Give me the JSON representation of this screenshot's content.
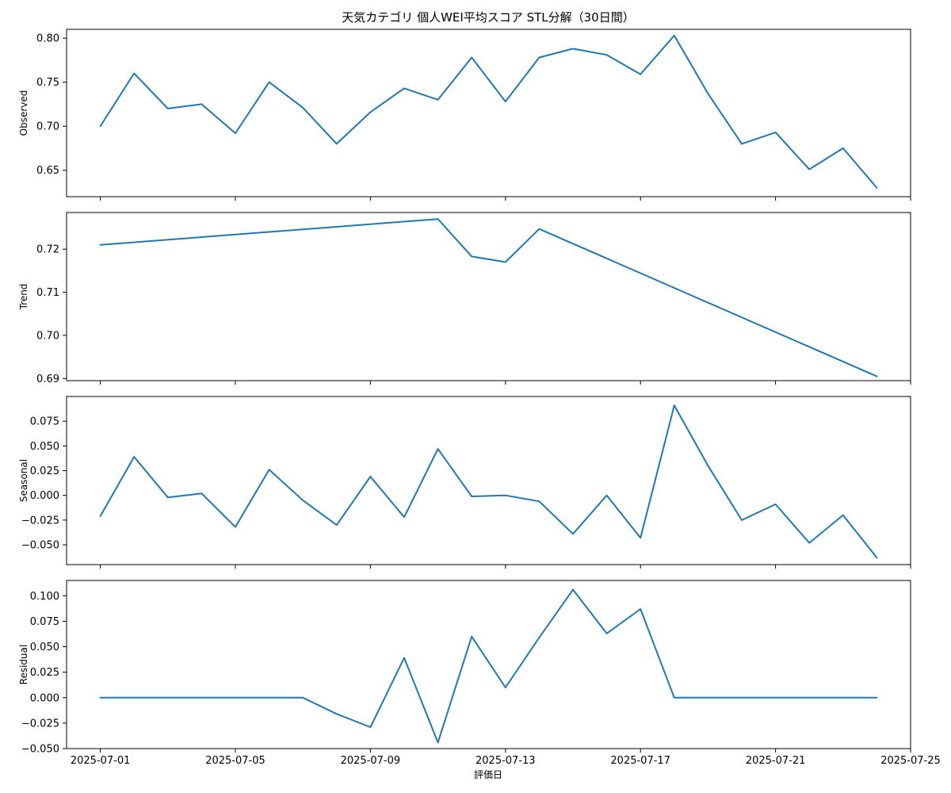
{
  "figure": {
    "title": "天気カテゴリ 個人WEI平均スコア STL分解（30日間）",
    "xlabel": "評価日",
    "line_color": "#1f77b4"
  },
  "chart_data": [
    {
      "type": "line",
      "ylabel": "Observed",
      "grid": false,
      "legend": "none",
      "xlim": [
        "2025-06-30",
        "2025-07-25"
      ],
      "ylim": [
        0.62,
        0.81
      ],
      "yticks": [
        0.65,
        0.7,
        0.75,
        0.8
      ],
      "ytick_labels": [
        "0.65",
        "0.70",
        "0.75",
        "0.80"
      ],
      "series": [
        {
          "x": [
            "2025-07-01",
            "2025-07-02",
            "2025-07-03",
            "2025-07-04",
            "2025-07-05",
            "2025-07-06",
            "2025-07-07",
            "2025-07-08",
            "2025-07-09",
            "2025-07-10",
            "2025-07-11",
            "2025-07-12",
            "2025-07-13",
            "2025-07-14",
            "2025-07-15",
            "2025-07-16",
            "2025-07-17",
            "2025-07-18",
            "2025-07-19",
            "2025-07-20",
            "2025-07-21",
            "2025-07-22",
            "2025-07-23",
            "2025-07-24"
          ],
          "values": [
            0.7,
            0.76,
            0.72,
            0.725,
            0.692,
            0.75,
            0.721,
            0.68,
            0.716,
            0.743,
            0.73,
            0.778,
            0.728,
            0.778,
            0.788,
            0.781,
            0.759,
            0.803,
            0.737,
            0.68,
            0.693,
            0.651,
            0.675,
            0.63
          ]
        }
      ]
    },
    {
      "type": "line",
      "ylabel": "Trend",
      "grid": false,
      "legend": "none",
      "xlim": [
        "2025-06-30",
        "2025-07-25"
      ],
      "ylim": [
        0.6895,
        0.7285
      ],
      "yticks": [
        0.69,
        0.7,
        0.71,
        0.72
      ],
      "ytick_labels": [
        "0.69",
        "0.70",
        "0.71",
        "0.72"
      ],
      "series": [
        {
          "x": [
            "2025-07-01",
            "2025-07-11",
            "2025-07-12",
            "2025-07-13",
            "2025-07-14",
            "2025-07-24"
          ],
          "values": [
            0.721,
            0.727,
            0.7183,
            0.717,
            0.7247,
            0.6905
          ]
        }
      ]
    },
    {
      "type": "line",
      "ylabel": "Seasonal",
      "grid": false,
      "legend": "none",
      "xlim": [
        "2025-06-30",
        "2025-07-25"
      ],
      "ylim": [
        -0.07,
        0.1
      ],
      "yticks": [
        -0.05,
        -0.025,
        0.0,
        0.025,
        0.05,
        0.075
      ],
      "ytick_labels": [
        "−0.050",
        "−0.025",
        "0.000",
        "0.025",
        "0.050",
        "0.075"
      ],
      "series": [
        {
          "x": [
            "2025-07-01",
            "2025-07-02",
            "2025-07-03",
            "2025-07-04",
            "2025-07-05",
            "2025-07-06",
            "2025-07-07",
            "2025-07-08",
            "2025-07-09",
            "2025-07-10",
            "2025-07-11",
            "2025-07-12",
            "2025-07-13",
            "2025-07-14",
            "2025-07-15",
            "2025-07-16",
            "2025-07-17",
            "2025-07-18",
            "2025-07-19",
            "2025-07-20",
            "2025-07-21",
            "2025-07-22",
            "2025-07-23",
            "2025-07-24"
          ],
          "values": [
            -0.021,
            0.039,
            -0.002,
            0.002,
            -0.032,
            0.026,
            -0.005,
            -0.03,
            0.019,
            -0.022,
            0.047,
            -0.001,
            0.0,
            -0.006,
            -0.039,
            0.0,
            -0.043,
            0.091,
            0.03,
            -0.025,
            -0.009,
            -0.048,
            -0.02,
            -0.063
          ]
        }
      ]
    },
    {
      "type": "line",
      "ylabel": "Residual",
      "grid": false,
      "legend": "none",
      "xlim": [
        "2025-06-30",
        "2025-07-25"
      ],
      "ylim": [
        -0.05,
        0.115
      ],
      "yticks": [
        -0.05,
        -0.025,
        0.0,
        0.025,
        0.05,
        0.075,
        0.1
      ],
      "ytick_labels": [
        "−0.050",
        "−0.025",
        "0.000",
        "0.025",
        "0.050",
        "0.075",
        "0.100"
      ],
      "xticks": [
        "2025-07-01",
        "2025-07-05",
        "2025-07-09",
        "2025-07-13",
        "2025-07-17",
        "2025-07-21",
        "2025-07-25"
      ],
      "xtick_labels": [
        "2025-07-01",
        "2025-07-05",
        "2025-07-09",
        "2025-07-13",
        "2025-07-17",
        "2025-07-21",
        "2025-07-25"
      ],
      "series": [
        {
          "x": [
            "2025-07-01",
            "2025-07-07",
            "2025-07-08",
            "2025-07-09",
            "2025-07-10",
            "2025-07-11",
            "2025-07-12",
            "2025-07-13",
            "2025-07-14",
            "2025-07-15",
            "2025-07-16",
            "2025-07-17",
            "2025-07-18",
            "2025-07-24"
          ],
          "values": [
            0.0,
            0.0,
            -0.016,
            -0.029,
            0.039,
            -0.044,
            0.06,
            0.01,
            0.059,
            0.106,
            0.063,
            0.087,
            0.0,
            0.0
          ]
        }
      ]
    }
  ]
}
